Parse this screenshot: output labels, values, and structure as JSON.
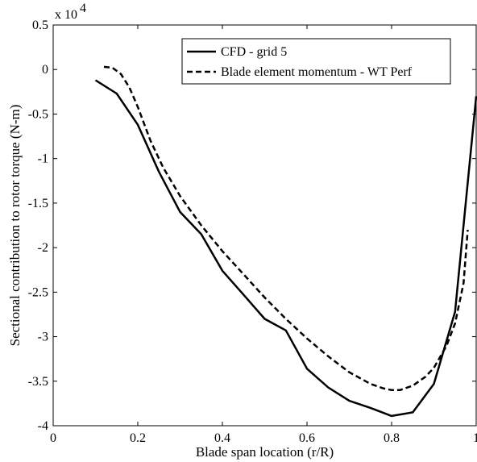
{
  "chart_data": {
    "type": "line",
    "title": "",
    "xlabel": "Blade span location (r/R)",
    "ylabel": "Sectional contribution to rotor torque (N-m)",
    "y_multiplier_label": "x 10",
    "y_multiplier_exponent": "4",
    "xlim": [
      0,
      1
    ],
    "ylim": [
      -4,
      0.5
    ],
    "x_ticks": [
      0,
      0.2,
      0.4,
      0.6,
      0.8,
      1
    ],
    "x_tick_labels": [
      "0",
      "0.2",
      "0.4",
      "0.6",
      "0.8",
      "1"
    ],
    "y_ticks": [
      0.5,
      0,
      -0.5,
      -1,
      -1.5,
      -2,
      -2.5,
      -3,
      -3.5,
      -4
    ],
    "y_tick_labels": [
      "0.5",
      "0",
      "-0.5",
      "-1",
      "-1.5",
      "-2",
      "-2.5",
      "-3",
      "-3.5",
      "-4"
    ],
    "grid": false,
    "legend_position": "top-right",
    "series": [
      {
        "name": "CFD - grid 5",
        "style": "solid",
        "color": "#000000",
        "x": [
          0.1,
          0.15,
          0.2,
          0.25,
          0.3,
          0.35,
          0.4,
          0.45,
          0.5,
          0.55,
          0.6,
          0.65,
          0.7,
          0.75,
          0.8,
          0.85,
          0.9,
          0.95,
          1.0
        ],
        "y": [
          -0.12,
          -0.27,
          -0.62,
          -1.15,
          -1.6,
          -1.85,
          -2.26,
          -2.53,
          -2.8,
          -2.93,
          -3.36,
          -3.57,
          -3.72,
          -3.8,
          -3.89,
          -3.85,
          -3.53,
          -2.72,
          -0.3
        ]
      },
      {
        "name": "Blade element momentum - WT Perf",
        "style": "dashed",
        "color": "#000000",
        "x": [
          0.12,
          0.14,
          0.16,
          0.18,
          0.2,
          0.23,
          0.26,
          0.3,
          0.35,
          0.4,
          0.45,
          0.5,
          0.55,
          0.6,
          0.65,
          0.7,
          0.75,
          0.78,
          0.8,
          0.82,
          0.85,
          0.88,
          0.9,
          0.93,
          0.95,
          0.97,
          0.98
        ],
        "y": [
          0.03,
          0.02,
          -0.05,
          -0.2,
          -0.42,
          -0.8,
          -1.1,
          -1.42,
          -1.75,
          -2.04,
          -2.3,
          -2.56,
          -2.8,
          -3.02,
          -3.22,
          -3.4,
          -3.53,
          -3.58,
          -3.6,
          -3.6,
          -3.55,
          -3.45,
          -3.35,
          -3.1,
          -2.85,
          -2.4,
          -1.8
        ]
      }
    ]
  }
}
